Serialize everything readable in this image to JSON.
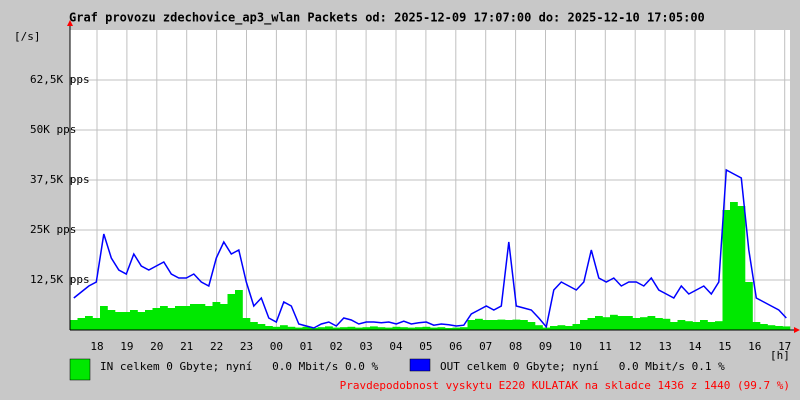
{
  "chart_data": {
    "type": "mrtg",
    "title": "Graf provozu zdechovice_ap3_wlan Packets od: 2025-12-09 17:07:00 do: 2025-12-10 17:05:00",
    "y_unit": "[/s]",
    "x_unit": "[h]",
    "ylim": [
      0,
      75000
    ],
    "yticks": [
      {
        "value": 12500,
        "label": "12,5K pps"
      },
      {
        "value": 25000,
        "label": "25K pps"
      },
      {
        "value": 37500,
        "label": "37,5K pps"
      },
      {
        "value": 50000,
        "label": "50K pps"
      },
      {
        "value": 62500,
        "label": "62,5K pps"
      }
    ],
    "xticks": [
      "18",
      "19",
      "20",
      "21",
      "22",
      "23",
      "00",
      "01",
      "02",
      "03",
      "04",
      "05",
      "06",
      "07",
      "08",
      "09",
      "10",
      "11",
      "12",
      "13",
      "14",
      "15",
      "16",
      "17"
    ],
    "grid": true,
    "series": [
      {
        "name": "IN celkem 0 Gbyte; nyní   0.0 Mbit/s 0.0 %",
        "color": "#00e800",
        "values": [
          2500,
          3000,
          3500,
          3000,
          6000,
          5000,
          4500,
          4500,
          5000,
          4500,
          5000,
          5500,
          6000,
          5500,
          6000,
          6000,
          6500,
          6500,
          6000,
          7000,
          6500,
          9000,
          10000,
          3000,
          2000,
          1500,
          1000,
          800,
          1200,
          800,
          600,
          800,
          500,
          700,
          900,
          600,
          700,
          800,
          600,
          700,
          900,
          700,
          600,
          800,
          700,
          600,
          700,
          800,
          600,
          700,
          500,
          600,
          700,
          2500,
          2800,
          2500,
          2500,
          2600,
          2500,
          2600,
          2500,
          2000,
          1200,
          600,
          1000,
          1200,
          1000,
          1500,
          2500,
          3000,
          3500,
          3200,
          3800,
          3500,
          3500,
          3000,
          3200,
          3500,
          3000,
          2800,
          2000,
          2500,
          2200,
          2000,
          2500,
          2000,
          2200,
          30000,
          32000,
          31000,
          12000,
          2000,
          1500,
          1200,
          1000,
          900
        ]
      },
      {
        "name": "OUT celkem 0 Gbyte; nyní   0.0 Mbit/s 0.1 %",
        "color": "#0000ff",
        "values": [
          8000,
          9500,
          11000,
          12000,
          24000,
          18000,
          15000,
          14000,
          19000,
          16000,
          15000,
          16000,
          17000,
          14000,
          13000,
          13000,
          14000,
          12000,
          11000,
          18000,
          22000,
          19000,
          20000,
          12000,
          6000,
          8000,
          3000,
          2000,
          7000,
          6000,
          1500,
          1000,
          500,
          1500,
          2000,
          1000,
          3000,
          2500,
          1500,
          2000,
          2000,
          1800,
          2000,
          1500,
          2200,
          1500,
          1800,
          2000,
          1200,
          1500,
          1300,
          1000,
          1200,
          4000,
          5000,
          6000,
          5000,
          6000,
          22000,
          6000,
          5500,
          5000,
          3000,
          800,
          10000,
          12000,
          11000,
          10000,
          12000,
          20000,
          13000,
          12000,
          13000,
          11000,
          12000,
          12000,
          11000,
          13000,
          10000,
          9000,
          8000,
          11000,
          9000,
          10000,
          11000,
          9000,
          12000,
          40000,
          39000,
          38000,
          20000,
          8000,
          7000,
          6000,
          5000,
          3000
        ]
      }
    ],
    "footnote": "Pravdepodobnost vyskytu E220 KULATAK na skladce 1436 z 1440 (99.7 %)"
  }
}
